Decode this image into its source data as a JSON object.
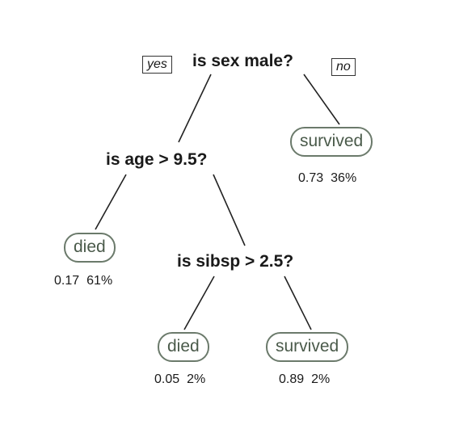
{
  "tree": {
    "root": {
      "question": "is sex male?",
      "yes_label": "yes",
      "no_label": "no"
    },
    "age_node": {
      "question": "is age > 9.5?"
    },
    "sibsp_node": {
      "question": "is sibsp > 2.5?"
    },
    "leaves": {
      "female": {
        "label": "survived",
        "prob": "0.73",
        "pct": "36%"
      },
      "male_older": {
        "label": "died",
        "prob": "0.17",
        "pct": "61%"
      },
      "boy_many_sibs": {
        "label": "died",
        "prob": "0.05",
        "pct": "2%"
      },
      "boy_few_sibs": {
        "label": "survived",
        "prob": "0.89",
        "pct": "2%"
      }
    }
  }
}
